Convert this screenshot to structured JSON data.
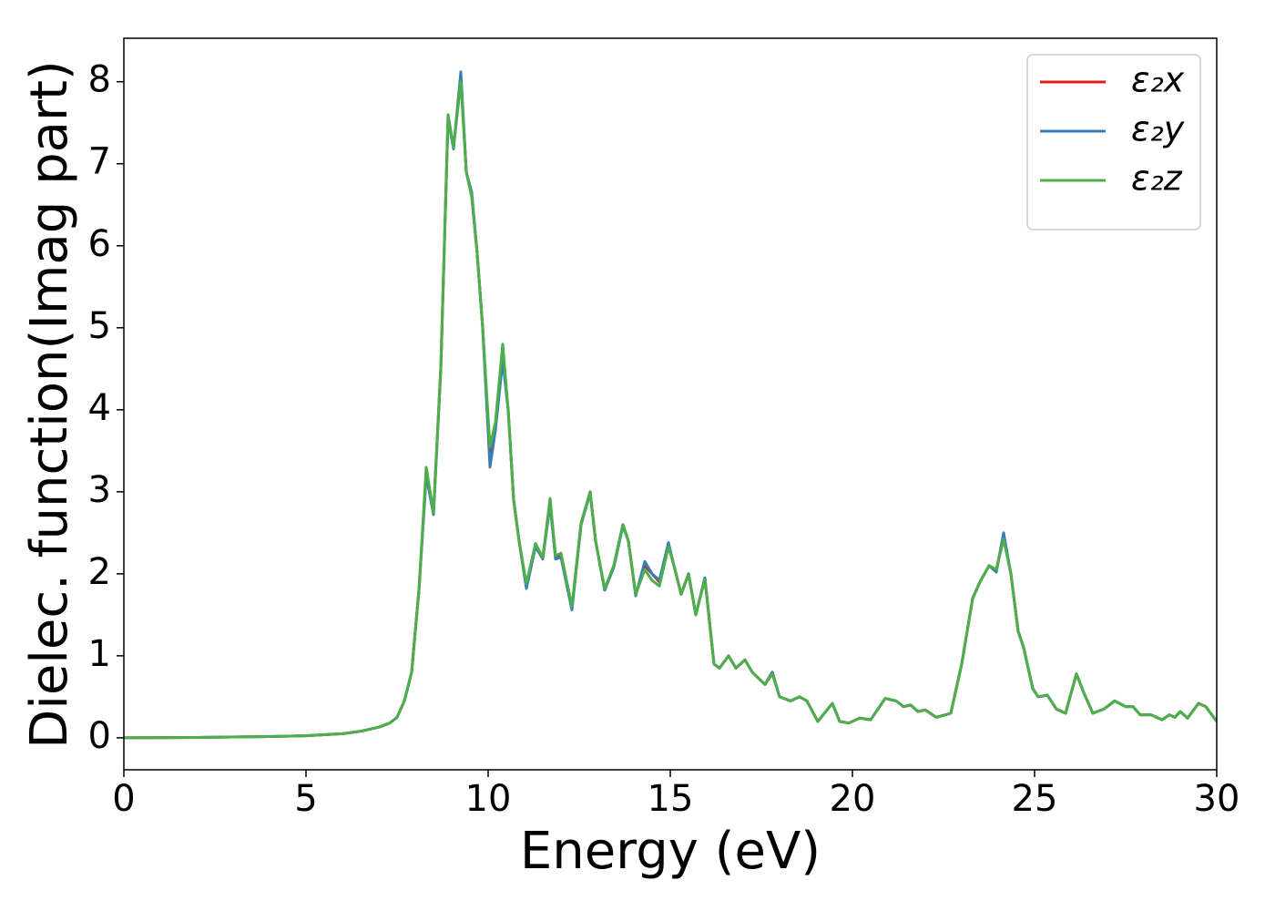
{
  "chart_data": {
    "type": "line",
    "xlabel": "Energy (eV)",
    "ylabel": "Dielec. function(Imag part)",
    "x": [
      0,
      2,
      4,
      5,
      6,
      6.5,
      7,
      7.3,
      7.5,
      7.7,
      7.9,
      8.1,
      8.3,
      8.5,
      8.7,
      8.9,
      9.05,
      9.25,
      9.4,
      9.55,
      9.7,
      9.85,
      10.05,
      10.2,
      10.4,
      10.55,
      10.7,
      10.85,
      11.05,
      11.3,
      11.5,
      11.7,
      11.85,
      12.0,
      12.3,
      12.55,
      12.8,
      12.95,
      13.2,
      13.45,
      13.7,
      13.85,
      14.05,
      14.3,
      14.5,
      14.7,
      14.95,
      15.1,
      15.3,
      15.5,
      15.7,
      15.95,
      16.2,
      16.35,
      16.6,
      16.8,
      17.05,
      17.25,
      17.6,
      17.8,
      18.0,
      18.3,
      18.55,
      18.75,
      19.05,
      19.45,
      19.65,
      19.9,
      20.2,
      20.5,
      20.9,
      21.2,
      21.4,
      21.6,
      21.8,
      22.0,
      22.3,
      22.7,
      23.0,
      23.3,
      23.5,
      23.75,
      23.95,
      24.15,
      24.35,
      24.55,
      24.7,
      24.95,
      25.1,
      25.35,
      25.6,
      25.85,
      26.15,
      26.35,
      26.6,
      26.9,
      27.2,
      27.5,
      27.7,
      27.9,
      28.2,
      28.5,
      28.7,
      28.85,
      29.0,
      29.2,
      29.5,
      29.7,
      30
    ],
    "series": [
      {
        "name": "ε₂x",
        "color": "#e41a1c",
        "values": [
          0,
          0.005,
          0.015,
          0.025,
          0.05,
          0.08,
          0.13,
          0.18,
          0.25,
          0.45,
          0.8,
          1.8,
          3.2,
          2.75,
          4.5,
          7.55,
          7.2,
          8.05,
          6.9,
          6.6,
          5.9,
          5.0,
          3.4,
          3.8,
          4.65,
          4.0,
          2.9,
          2.4,
          1.85,
          2.35,
          2.2,
          2.85,
          2.2,
          2.22,
          1.58,
          2.6,
          3.0,
          2.4,
          1.8,
          2.1,
          2.6,
          2.4,
          1.75,
          2.1,
          2.0,
          1.9,
          2.35,
          2.1,
          1.75,
          2.0,
          1.5,
          1.95,
          0.9,
          0.85,
          1.0,
          0.85,
          0.95,
          0.8,
          0.65,
          0.8,
          0.5,
          0.45,
          0.5,
          0.45,
          0.2,
          0.42,
          0.2,
          0.18,
          0.24,
          0.22,
          0.48,
          0.45,
          0.38,
          0.4,
          0.32,
          0.34,
          0.25,
          0.3,
          0.9,
          1.7,
          1.9,
          2.1,
          2.05,
          2.45,
          2.0,
          1.3,
          1.1,
          0.6,
          0.5,
          0.52,
          0.35,
          0.3,
          0.78,
          0.55,
          0.3,
          0.35,
          0.45,
          0.38,
          0.38,
          0.28,
          0.28,
          0.22,
          0.28,
          0.25,
          0.32,
          0.24,
          0.42,
          0.38,
          0.2
        ]
      },
      {
        "name": "ε₂y",
        "color": "#377eb8",
        "values": [
          0,
          0.005,
          0.015,
          0.025,
          0.05,
          0.08,
          0.13,
          0.18,
          0.25,
          0.45,
          0.8,
          1.8,
          3.2,
          2.72,
          4.5,
          7.55,
          7.18,
          8.12,
          6.9,
          6.65,
          5.9,
          5.0,
          3.3,
          3.75,
          4.6,
          4.0,
          2.9,
          2.4,
          1.82,
          2.33,
          2.18,
          2.85,
          2.18,
          2.2,
          1.56,
          2.6,
          2.98,
          2.4,
          1.8,
          2.08,
          2.58,
          2.4,
          1.73,
          2.15,
          2.0,
          1.92,
          2.38,
          2.1,
          1.75,
          2.0,
          1.5,
          1.95,
          0.9,
          0.85,
          1.0,
          0.85,
          0.95,
          0.8,
          0.65,
          0.8,
          0.5,
          0.45,
          0.5,
          0.45,
          0.2,
          0.42,
          0.2,
          0.18,
          0.24,
          0.22,
          0.48,
          0.45,
          0.38,
          0.4,
          0.32,
          0.34,
          0.25,
          0.3,
          0.9,
          1.7,
          1.9,
          2.1,
          2.02,
          2.5,
          2.0,
          1.3,
          1.1,
          0.6,
          0.5,
          0.52,
          0.35,
          0.3,
          0.78,
          0.55,
          0.3,
          0.35,
          0.45,
          0.38,
          0.38,
          0.28,
          0.28,
          0.22,
          0.28,
          0.25,
          0.32,
          0.24,
          0.42,
          0.38,
          0.2
        ]
      },
      {
        "name": "ε₂z",
        "color": "#4daf4a",
        "values": [
          0,
          0.005,
          0.015,
          0.025,
          0.05,
          0.08,
          0.13,
          0.18,
          0.25,
          0.45,
          0.8,
          1.8,
          3.3,
          2.75,
          4.5,
          7.6,
          7.2,
          8.0,
          6.9,
          6.6,
          5.9,
          5.0,
          3.55,
          3.85,
          4.8,
          4.0,
          2.9,
          2.4,
          1.88,
          2.37,
          2.2,
          2.92,
          2.22,
          2.25,
          1.6,
          2.62,
          3.0,
          2.4,
          1.82,
          2.1,
          2.6,
          2.4,
          1.75,
          2.05,
          1.92,
          1.85,
          2.33,
          2.1,
          1.75,
          2.0,
          1.5,
          1.93,
          0.9,
          0.85,
          1.0,
          0.85,
          0.95,
          0.8,
          0.65,
          0.78,
          0.5,
          0.45,
          0.5,
          0.45,
          0.2,
          0.42,
          0.2,
          0.18,
          0.24,
          0.22,
          0.48,
          0.45,
          0.38,
          0.4,
          0.32,
          0.34,
          0.25,
          0.3,
          0.9,
          1.7,
          1.9,
          2.1,
          2.05,
          2.42,
          2.0,
          1.3,
          1.1,
          0.6,
          0.5,
          0.52,
          0.35,
          0.3,
          0.78,
          0.55,
          0.3,
          0.35,
          0.45,
          0.38,
          0.38,
          0.28,
          0.28,
          0.22,
          0.28,
          0.25,
          0.32,
          0.24,
          0.42,
          0.38,
          0.2
        ]
      }
    ],
    "xlim": [
      0,
      30
    ],
    "ylim": [
      -0.39,
      8.53
    ],
    "xticks": [
      0,
      5,
      10,
      15,
      20,
      25,
      30
    ],
    "yticks": [
      0,
      1,
      2,
      3,
      4,
      5,
      6,
      7,
      8
    ],
    "legend": "upper right"
  }
}
